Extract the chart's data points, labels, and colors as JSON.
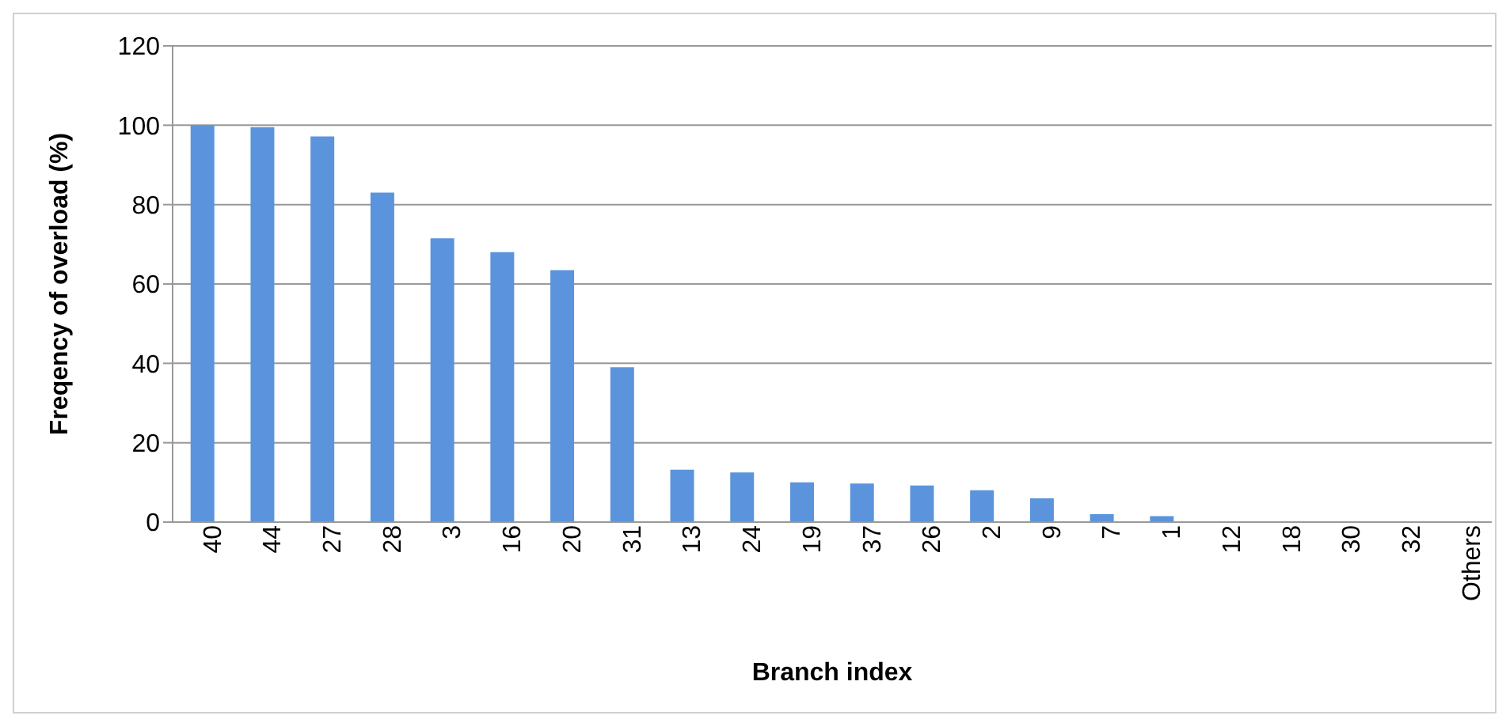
{
  "chart_data": {
    "type": "bar",
    "xlabel": "Branch index",
    "ylabel": "Freqency of overload (%)",
    "categories": [
      "40",
      "44",
      "27",
      "28",
      "3",
      "16",
      "20",
      "31",
      "13",
      "24",
      "19",
      "37",
      "26",
      "2",
      "9",
      "7",
      "1",
      "12",
      "18",
      "30",
      "32",
      "Others"
    ],
    "values": [
      100,
      99.5,
      97.2,
      83,
      71.5,
      68,
      63.5,
      39,
      13.2,
      12.5,
      10,
      9.7,
      9.2,
      8,
      6,
      2,
      1.5,
      0.2,
      0.2,
      0.2,
      0.2,
      0
    ],
    "color": "#5b94dc",
    "ylim": [
      0,
      120
    ],
    "yticks": [
      0,
      20,
      40,
      60,
      80,
      100,
      120
    ],
    "grid": "y"
  }
}
